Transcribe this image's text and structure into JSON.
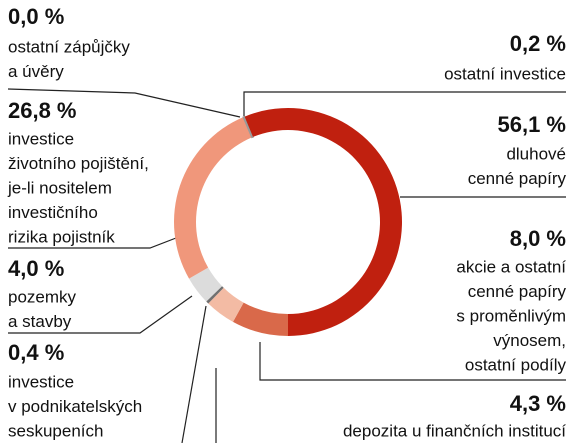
{
  "chart_data": {
    "type": "pie",
    "categories": [
      [
        "ostatní investice"
      ],
      [
        "dluhové",
        "cenné papíry"
      ],
      [
        "akcie a ostatní",
        "cenné papíry",
        "s proměnlivým",
        "výnosem,",
        "ostatní podíly"
      ],
      [
        "depozita u finančních institucí"
      ],
      [
        "investice",
        "v podnikatelských",
        "seskupeních"
      ],
      [
        "pozemky",
        "a stavby"
      ],
      [
        "investice",
        "životního pojištění,",
        "je-li nositelem",
        "investičního",
        "rizika pojistník"
      ],
      [
        "ostatní zápůjčky",
        "a úvěry"
      ]
    ],
    "values": [
      0.2,
      56.1,
      8.0,
      4.3,
      0.4,
      4.0,
      26.8,
      0.0
    ],
    "value_labels": [
      "0,2 %",
      "56,1 %",
      "8,0 %",
      "4,3 %",
      "0,4 %",
      "4,0 %",
      "26,8 %",
      "0,0 %"
    ],
    "colors": [
      "#9a9a9a",
      "#c0200f",
      "#d9694a",
      "#f3bba4",
      "#707070",
      "#dcdcdc",
      "#f0977b",
      "#9a9a9a"
    ]
  }
}
